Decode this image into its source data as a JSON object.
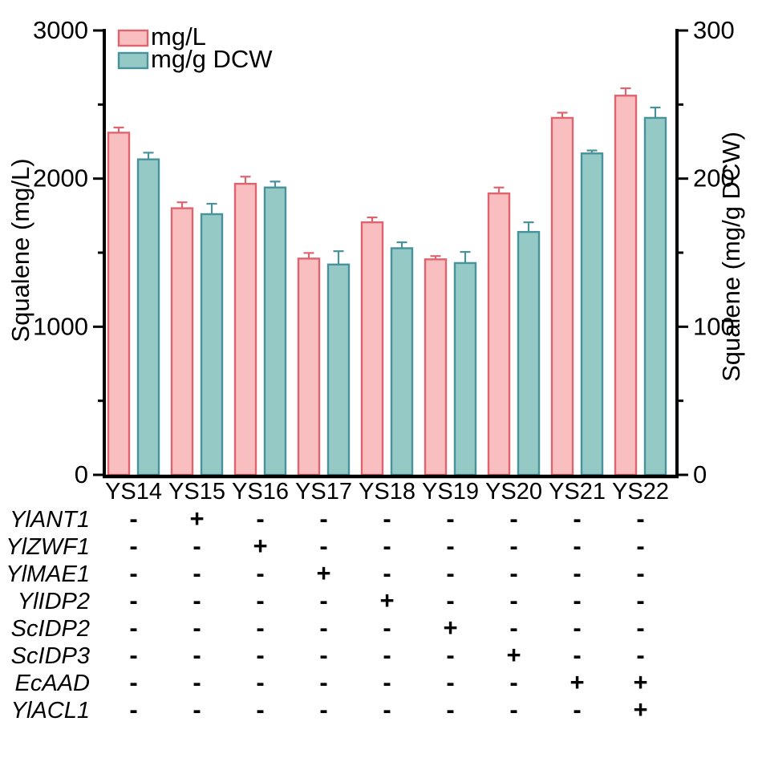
{
  "figure": {
    "background": "#ffffff"
  },
  "chart_data": {
    "type": "bar",
    "title": "",
    "categories": [
      "YS14",
      "YS15",
      "YS16",
      "YS17",
      "YS18",
      "YS19",
      "YS20",
      "YS21",
      "YS22"
    ],
    "series": [
      {
        "name": "mg/L",
        "axis": "left",
        "fill": "#F9BEC0",
        "stroke": "#E0646E",
        "values": [
          2310,
          1800,
          1965,
          1460,
          1705,
          1455,
          1900,
          2410,
          2560
        ],
        "errors": [
          35,
          40,
          48,
          38,
          33,
          22,
          40,
          35,
          50
        ]
      },
      {
        "name": "mg/g DCW",
        "axis": "right",
        "fill": "#94C9C6",
        "stroke": "#47929B",
        "values": [
          213,
          176,
          194,
          142,
          153,
          143,
          164,
          217,
          241
        ],
        "errors": [
          4.5,
          7,
          4,
          9,
          4,
          7.5,
          6.5,
          2,
          7
        ]
      }
    ],
    "left_axis": {
      "label": "Squalene (mg/L)",
      "min": 0,
      "max": 3000,
      "major_ticks": [
        3000,
        2000,
        1000,
        0
      ],
      "minor_ticks": [
        2500,
        1500,
        500
      ]
    },
    "right_axis": {
      "label": "Squalene (mg/g DCW)",
      "min": 0,
      "max": 300,
      "major_ticks": [
        300,
        200,
        100,
        0
      ],
      "minor_ticks": [
        250,
        150,
        50
      ]
    },
    "legend": {
      "position": "top-left",
      "entries": [
        "mg/L",
        "mg/g DCW"
      ]
    },
    "grid": false
  },
  "gene_table": {
    "genes": [
      "YlANT1",
      "YlZWF1",
      "YlMAE1",
      "YlIDP2",
      "ScIDP2",
      "ScIDP3",
      "EcAAD",
      "YlACL1"
    ],
    "marks": [
      [
        "-",
        "+",
        "-",
        "-",
        "-",
        "-",
        "-",
        "-",
        "-"
      ],
      [
        "-",
        "-",
        "+",
        "-",
        "-",
        "-",
        "-",
        "-",
        "-"
      ],
      [
        "-",
        "-",
        "-",
        "+",
        "-",
        "-",
        "-",
        "-",
        "-"
      ],
      [
        "-",
        "-",
        "-",
        "-",
        "+",
        "-",
        "-",
        "-",
        "-"
      ],
      [
        "-",
        "-",
        "-",
        "-",
        "-",
        "+",
        "-",
        "-",
        "-"
      ],
      [
        "-",
        "-",
        "-",
        "-",
        "-",
        "-",
        "+",
        "-",
        "-"
      ],
      [
        "-",
        "-",
        "-",
        "-",
        "-",
        "-",
        "-",
        "+",
        "+"
      ],
      [
        "-",
        "-",
        "-",
        "-",
        "-",
        "-",
        "-",
        "-",
        "+"
      ]
    ]
  }
}
